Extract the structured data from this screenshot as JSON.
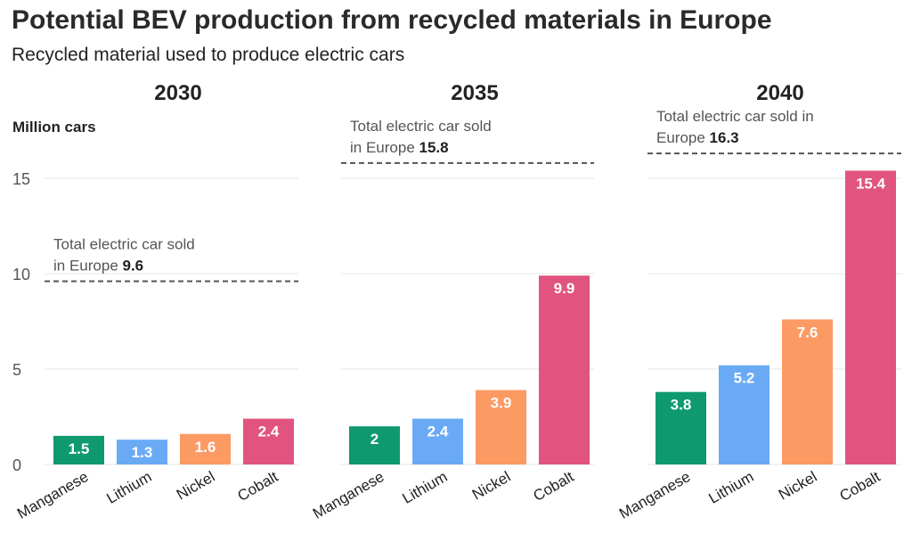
{
  "title": "Potential BEV production from recycled materials in Europe",
  "subtitle": "Recycled material used to produce electric cars",
  "colors": {
    "Manganese": "#0e9a6e",
    "Lithium": "#6aaaf5",
    "Nickel": "#fb9a63",
    "Cobalt": "#e1547f",
    "grid": "#e6e6e6",
    "text": "#222222",
    "axis_text": "#555555",
    "reference_line": "#555555"
  },
  "chart_data": {
    "type": "bar",
    "ylabel": "Million cars",
    "ylim": [
      0,
      16.5
    ],
    "yticks": [
      0,
      5,
      10,
      15
    ],
    "grid": true,
    "categories": [
      "Manganese",
      "Lithium",
      "Nickel",
      "Cobalt"
    ],
    "panels": [
      {
        "title": "2030",
        "values": [
          1.5,
          1.3,
          1.6,
          2.4
        ],
        "value_labels": [
          "1.5",
          "1.3",
          "1.6",
          "2.4"
        ],
        "reference": {
          "value": 9.6,
          "label_line1": "Total electric car sold",
          "label_line2_prefix": "in Europe ",
          "label_value": "9.6"
        }
      },
      {
        "title": "2035",
        "values": [
          2,
          2.4,
          3.9,
          9.9
        ],
        "value_labels": [
          "2",
          "2.4",
          "3.9",
          "9.9"
        ],
        "reference": {
          "value": 15.8,
          "label_line1": "Total electric car sold",
          "label_line2_prefix": "in Europe ",
          "label_value": "15.8"
        }
      },
      {
        "title": "2040",
        "values": [
          3.8,
          5.2,
          7.6,
          15.4
        ],
        "value_labels": [
          "3.8",
          "5.2",
          "7.6",
          "15.4"
        ],
        "reference": {
          "value": 16.3,
          "label_line1": "Total electric car sold in",
          "label_line2_prefix": "Europe ",
          "label_value": "16.3"
        }
      }
    ]
  }
}
